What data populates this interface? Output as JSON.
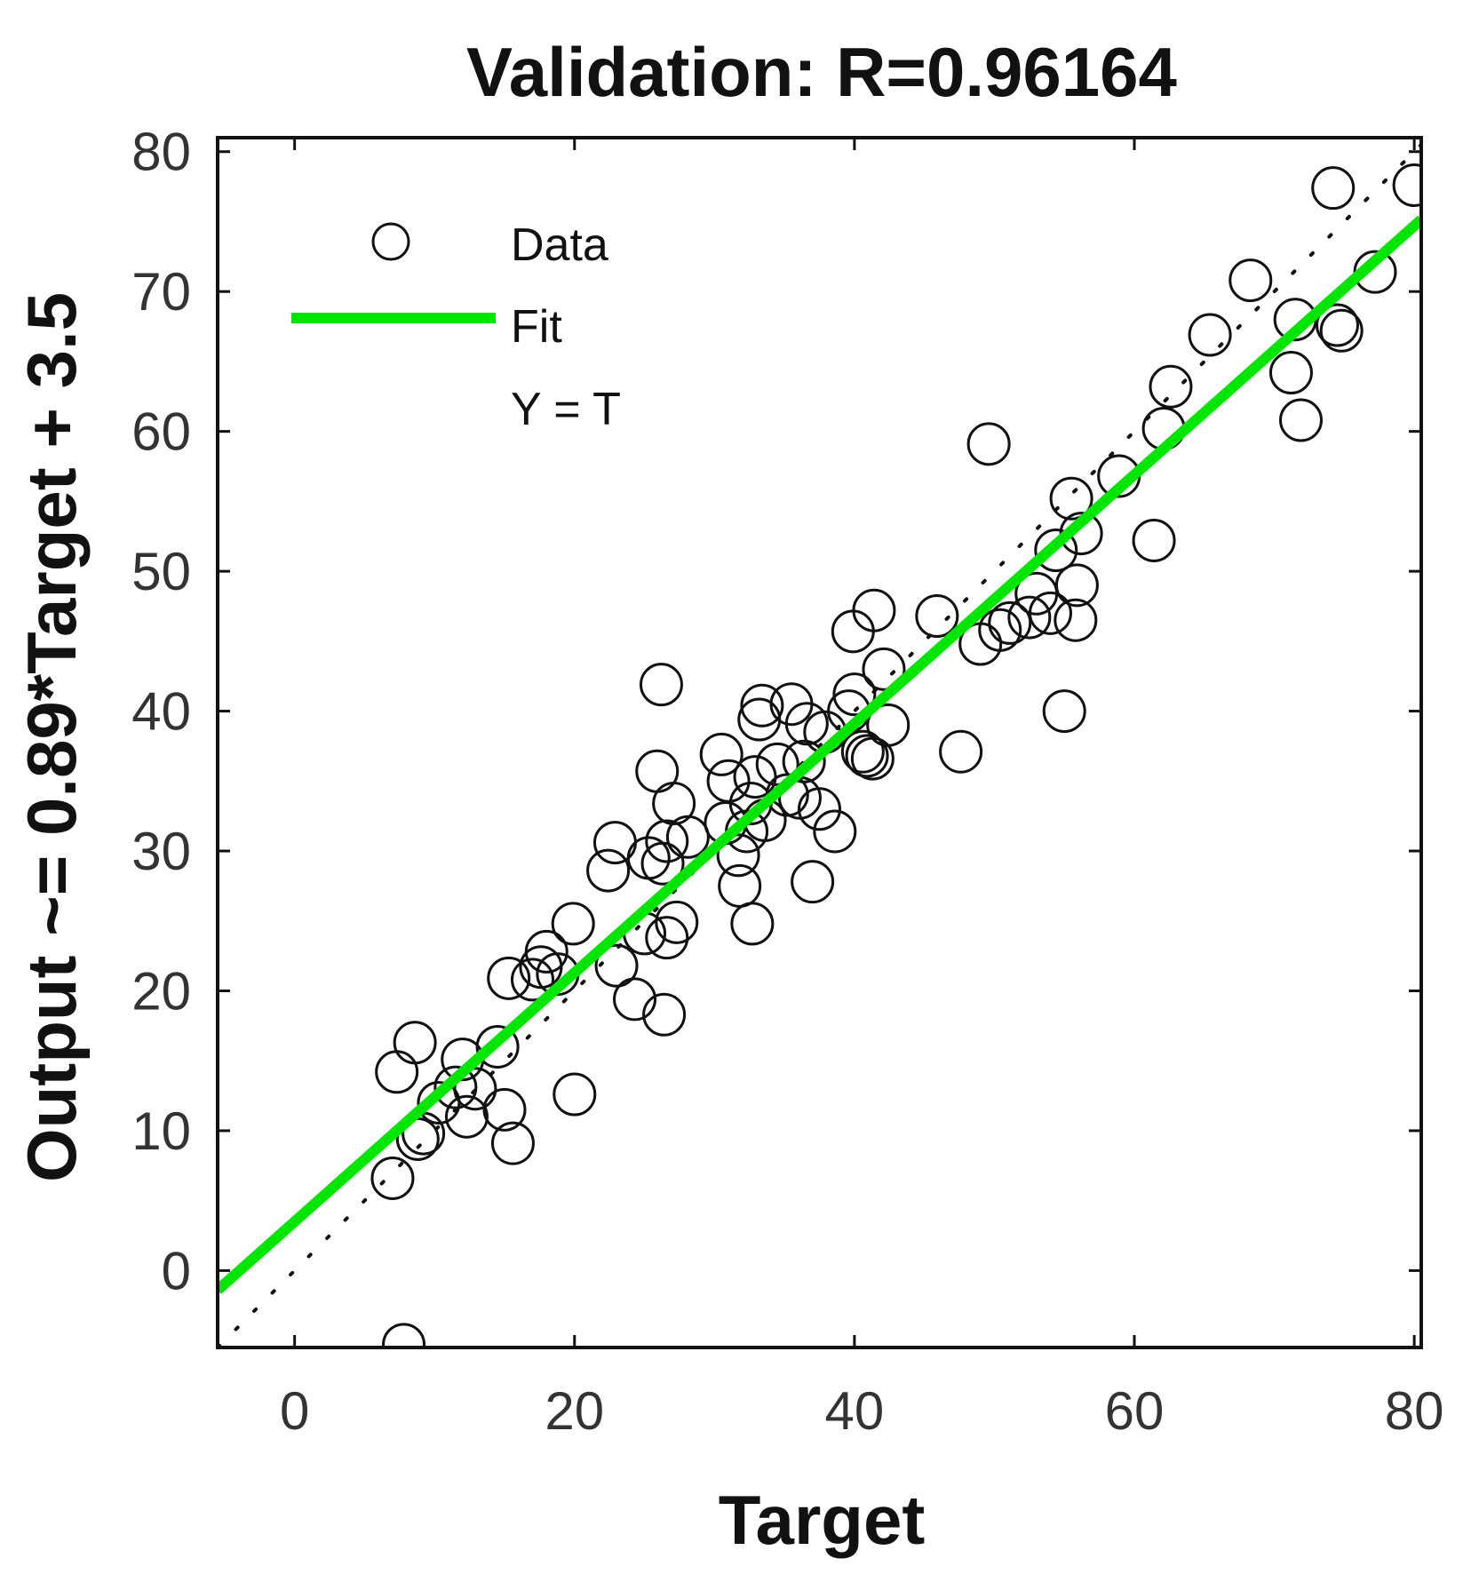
{
  "chart_data": {
    "type": "scatter",
    "title": "Validation: R=0.96164",
    "xlabel": "Target",
    "ylabel": "Output ~= 0.89*Target + 3.5",
    "xlim": [
      -5.5,
      80.5
    ],
    "ylim": [
      -5.5,
      81
    ],
    "xticks": [
      0,
      20,
      40,
      60,
      80
    ],
    "yticks": [
      0,
      10,
      20,
      30,
      40,
      50,
      60,
      70,
      80
    ],
    "xtick_labels": [
      "0",
      "20",
      "40",
      "60",
      "80"
    ],
    "ytick_labels": [
      "0",
      "10",
      "20",
      "30",
      "40",
      "50",
      "60",
      "70",
      "80"
    ],
    "legend": {
      "placement": "top-left",
      "entries": [
        "Data",
        "Fit",
        "Y = T"
      ]
    },
    "fit": {
      "slope": 0.89,
      "intercept": 3.5
    },
    "identity_line": {
      "slope": 1,
      "intercept": 0
    },
    "colors": {
      "fit": "#00e600",
      "markers": "#111111",
      "identity": "#111111",
      "axes": "#111111"
    },
    "series": [
      {
        "name": "Data",
        "points": [
          [
            7.8,
            -5.3
          ],
          [
            7.0,
            6.6
          ],
          [
            7.3,
            14.2
          ],
          [
            8.6,
            16.3
          ],
          [
            8.8,
            9.4
          ],
          [
            9.2,
            9.8
          ],
          [
            10.3,
            12.0
          ],
          [
            11.5,
            13.1
          ],
          [
            12.0,
            15.1
          ],
          [
            12.3,
            11.0
          ],
          [
            12.9,
            13.0
          ],
          [
            14.5,
            16.0
          ],
          [
            15.0,
            11.5
          ],
          [
            15.6,
            9.1
          ],
          [
            15.3,
            20.9
          ],
          [
            17.0,
            20.8
          ],
          [
            17.6,
            21.7
          ],
          [
            18.0,
            22.8
          ],
          [
            18.8,
            21.2
          ],
          [
            19.9,
            24.8
          ],
          [
            20.0,
            12.6
          ],
          [
            22.4,
            28.6
          ],
          [
            22.9,
            30.6
          ],
          [
            23.0,
            21.8
          ],
          [
            24.3,
            19.4
          ],
          [
            25.0,
            24.1
          ],
          [
            25.3,
            29.5
          ],
          [
            25.9,
            35.7
          ],
          [
            26.3,
            29.1
          ],
          [
            26.6,
            30.7
          ],
          [
            26.2,
            41.9
          ],
          [
            27.1,
            33.4
          ],
          [
            26.4,
            18.3
          ],
          [
            26.6,
            23.8
          ],
          [
            27.3,
            24.9
          ],
          [
            28.1,
            31.0
          ],
          [
            30.5,
            36.9
          ],
          [
            30.8,
            32.0
          ],
          [
            31.0,
            35.0
          ],
          [
            31.7,
            29.7
          ],
          [
            31.8,
            27.5
          ],
          [
            32.3,
            31.4
          ],
          [
            32.6,
            33.4
          ],
          [
            32.9,
            35.3
          ],
          [
            32.7,
            24.8
          ],
          [
            33.2,
            39.4
          ],
          [
            33.4,
            40.4
          ],
          [
            33.6,
            32.2
          ],
          [
            34.5,
            36.2
          ],
          [
            35.2,
            34.0
          ],
          [
            35.5,
            40.5
          ],
          [
            36.1,
            33.8
          ],
          [
            36.4,
            36.4
          ],
          [
            36.6,
            39.1
          ],
          [
            37.0,
            27.8
          ],
          [
            37.5,
            33.0
          ],
          [
            37.9,
            38.5
          ],
          [
            38.6,
            31.4
          ],
          [
            39.6,
            40.0
          ],
          [
            40.0,
            41.2
          ],
          [
            39.9,
            45.7
          ],
          [
            40.6,
            37.1
          ],
          [
            40.9,
            36.8
          ],
          [
            41.3,
            36.6
          ],
          [
            41.4,
            47.2
          ],
          [
            42.1,
            43.0
          ],
          [
            42.4,
            39.0
          ],
          [
            45.9,
            46.8
          ],
          [
            47.6,
            37.1
          ],
          [
            49.0,
            44.8
          ],
          [
            49.6,
            59.1
          ],
          [
            50.4,
            45.8
          ],
          [
            51.1,
            46.3
          ],
          [
            52.5,
            46.7
          ],
          [
            53.0,
            48.4
          ],
          [
            54.0,
            47.0
          ],
          [
            54.4,
            51.5
          ],
          [
            55.0,
            40.0
          ],
          [
            55.5,
            55.2
          ],
          [
            55.8,
            46.5
          ],
          [
            55.9,
            49.0
          ],
          [
            56.2,
            52.7
          ],
          [
            58.9,
            56.8
          ],
          [
            61.4,
            52.2
          ],
          [
            62.1,
            60.2
          ],
          [
            62.6,
            63.2
          ],
          [
            65.4,
            66.9
          ],
          [
            68.3,
            70.8
          ],
          [
            71.2,
            64.2
          ],
          [
            71.5,
            68.0
          ],
          [
            71.9,
            60.8
          ],
          [
            74.2,
            77.4
          ],
          [
            74.5,
            67.6
          ],
          [
            74.8,
            67.2
          ],
          [
            77.2,
            71.4
          ],
          [
            80.0,
            77.6
          ]
        ]
      }
    ]
  }
}
